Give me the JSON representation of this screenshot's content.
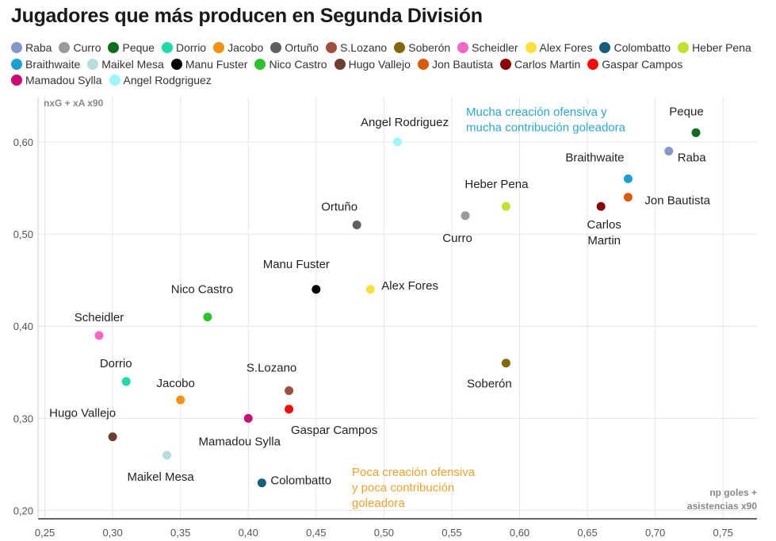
{
  "title": "Jugadores que más producen en Segunda División",
  "chart_data": {
    "type": "scatter",
    "title": "Jugadores que más producen en Segunda División",
    "xlabel": "np goles + asistencias x90",
    "xlabel_lines": [
      "np goles +",
      "asistencias x90"
    ],
    "ylabel": "nxG + xA x90",
    "xlim": [
      0.245,
      0.775
    ],
    "ylim": [
      0.191,
      0.649
    ],
    "x_ticks": [
      0.25,
      0.3,
      0.35,
      0.4,
      0.45,
      0.5,
      0.55,
      0.6,
      0.65,
      0.7,
      0.75
    ],
    "x_tick_labels": [
      "0,25",
      "0,30",
      "0,35",
      "0,40",
      "0,45",
      "0,50",
      "0,55",
      "0,60",
      "0,65",
      "0,70",
      "0,75"
    ],
    "y_ticks": [
      0.2,
      0.3,
      0.4,
      0.5,
      0.6
    ],
    "y_tick_labels": [
      "0,20",
      "0,30",
      "0,40",
      "0,50",
      "0,60"
    ],
    "grid": true,
    "legend_position": "top",
    "annotations": [
      {
        "lines": [
          "Mucha creación ofensiva y",
          "mucha contribución goleadora"
        ],
        "color": "#29a8d6"
      },
      {
        "lines": [
          "Poca creación ofensiva",
          "y poca contribución",
          "goleadora"
        ],
        "color": "#f2a12a"
      }
    ],
    "series": [
      {
        "name": "Raba",
        "label": [
          "Raba"
        ],
        "color": "#8497c9",
        "x": 0.71,
        "y": 0.59
      },
      {
        "name": "Curro",
        "label": [
          "Curro"
        ],
        "color": "#9b9b9b",
        "x": 0.56,
        "y": 0.52
      },
      {
        "name": "Peque",
        "label": [
          "Peque"
        ],
        "color": "#0b6e1d",
        "x": 0.73,
        "y": 0.61
      },
      {
        "name": "Dorrio",
        "label": [
          "Dorrio"
        ],
        "color": "#1ddba6",
        "x": 0.31,
        "y": 0.34
      },
      {
        "name": "Jacobo",
        "label": [
          "Jacobo"
        ],
        "color": "#f7900f",
        "x": 0.35,
        "y": 0.32
      },
      {
        "name": "Ortuño",
        "label": [
          "Ortuño"
        ],
        "color": "#5f5f5f",
        "x": 0.48,
        "y": 0.51
      },
      {
        "name": "S.Lozano",
        "label": [
          "S.Lozano"
        ],
        "color": "#a0503c",
        "x": 0.43,
        "y": 0.33
      },
      {
        "name": "Soberón",
        "label": [
          "Soberón"
        ],
        "color": "#7f6a06",
        "x": 0.59,
        "y": 0.36
      },
      {
        "name": "Scheidler",
        "label": [
          "Scheidler"
        ],
        "color": "#f766c4",
        "x": 0.29,
        "y": 0.39
      },
      {
        "name": "Alex Fores",
        "label": [
          "Alex Fores"
        ],
        "color": "#fbe03a",
        "x": 0.49,
        "y": 0.44
      },
      {
        "name": "Colombatto",
        "label": [
          "Colombatto"
        ],
        "color": "#155f7d",
        "x": 0.41,
        "y": 0.23
      },
      {
        "name": "Heber Pena",
        "label": [
          "Heber Pena"
        ],
        "color": "#c4e02a",
        "x": 0.59,
        "y": 0.53
      },
      {
        "name": "Braithwaite",
        "label": [
          "Braithwaite"
        ],
        "color": "#1a9fd2",
        "x": 0.68,
        "y": 0.56
      },
      {
        "name": "Maikel Mesa",
        "label": [
          "Maikel Mesa"
        ],
        "color": "#b5dede",
        "x": 0.34,
        "y": 0.26
      },
      {
        "name": "Manu Fuster",
        "label": [
          "Manu Fuster"
        ],
        "color": "#000000",
        "x": 0.45,
        "y": 0.44
      },
      {
        "name": "Nico Castro",
        "label": [
          "Nico Castro"
        ],
        "color": "#2cc42c",
        "x": 0.37,
        "y": 0.41
      },
      {
        "name": "Hugo Vallejo",
        "label": [
          "Hugo Vallejo"
        ],
        "color": "#6b3e30",
        "x": 0.3,
        "y": 0.28
      },
      {
        "name": "Jon Bautista",
        "label": [
          "Jon Bautista"
        ],
        "color": "#d95b05",
        "x": 0.68,
        "y": 0.54
      },
      {
        "name": "Carlos Martin",
        "label": [
          "Carlos",
          "Martin"
        ],
        "color": "#8c0000",
        "x": 0.66,
        "y": 0.53
      },
      {
        "name": "Gaspar Campos",
        "label": [
          "Gaspar Campos"
        ],
        "color": "#fb0a0a",
        "x": 0.43,
        "y": 0.31
      },
      {
        "name": "Mamadou Sylla",
        "label": [
          "Mamadou Sylla"
        ],
        "color": "#cc0a78",
        "x": 0.4,
        "y": 0.3
      },
      {
        "name": "Angel Rodgriguez",
        "label": [
          "Angel Rodriguez"
        ],
        "color": "#9cf7fc",
        "x": 0.51,
        "y": 0.6
      }
    ]
  }
}
